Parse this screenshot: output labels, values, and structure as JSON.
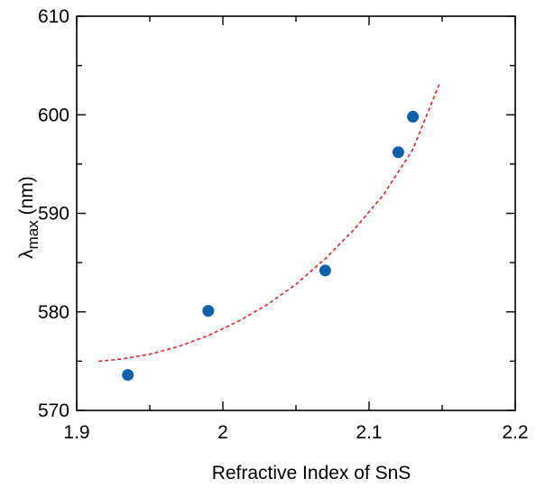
{
  "chart_data": {
    "type": "scatter",
    "xlabel": "Refractive Index of SnS",
    "ylabel_main": "λ",
    "ylabel_sub": "max",
    "ylabel_unit": " (nm)",
    "xlim": [
      1.9,
      2.2
    ],
    "ylim": [
      570,
      610
    ],
    "xticks": [
      1.9,
      2.0,
      2.1,
      2.2
    ],
    "xtick_labels": [
      "1.9",
      "2",
      "2.1",
      "2.2"
    ],
    "yticks": [
      570,
      580,
      590,
      600,
      610
    ],
    "ytick_labels": [
      "570",
      "580",
      "590",
      "600",
      "610"
    ],
    "grid": false,
    "series": [
      {
        "kind": "points",
        "color": "#1060a8",
        "x": [
          1.935,
          1.99,
          2.07,
          2.12,
          2.13
        ],
        "y": [
          573.6,
          580.1,
          584.2,
          596.2,
          599.8
        ]
      },
      {
        "kind": "fit",
        "style": "dashed",
        "color": "#d9262b",
        "x": [
          1.915,
          1.93,
          1.95,
          1.97,
          1.99,
          2.01,
          2.03,
          2.05,
          2.07,
          2.09,
          2.11,
          2.13,
          2.148
        ],
        "y": [
          575.0,
          575.2,
          575.7,
          576.5,
          577.6,
          579.0,
          580.7,
          582.8,
          585.4,
          588.4,
          591.9,
          596.5,
          603.1
        ]
      }
    ]
  }
}
